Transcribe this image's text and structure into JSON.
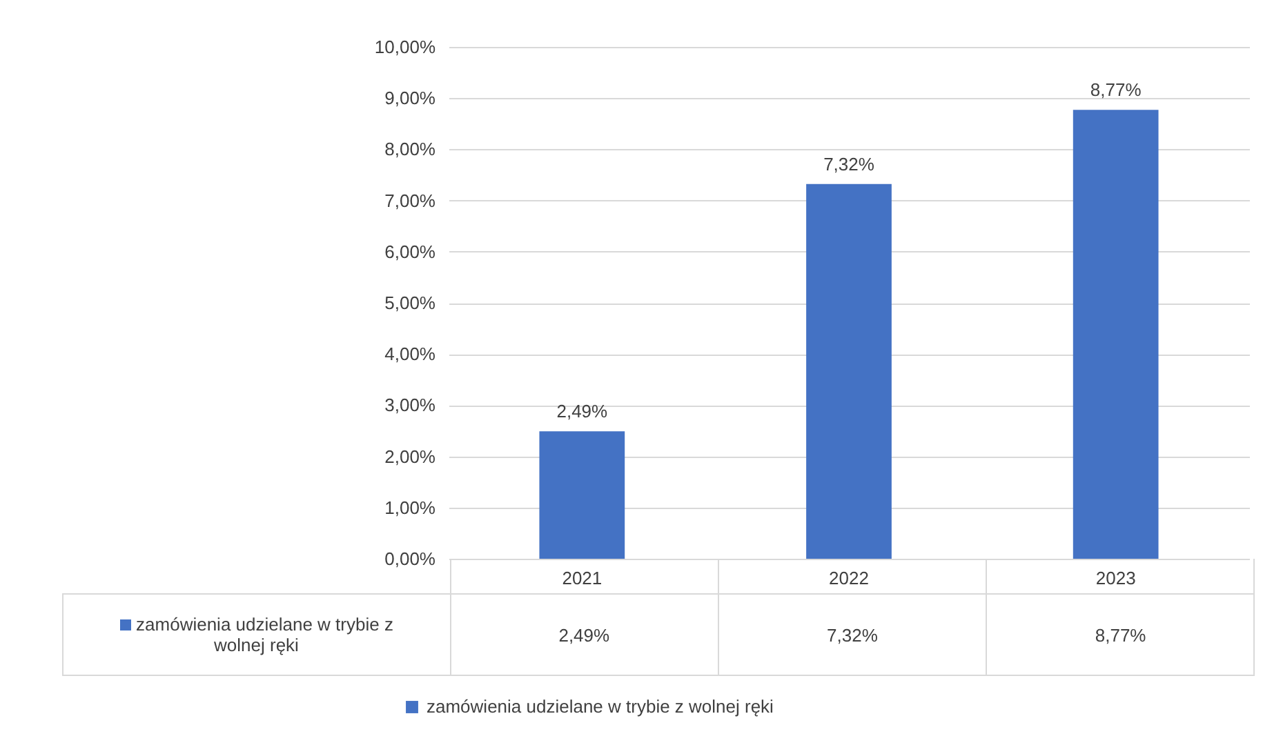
{
  "chart_data": {
    "type": "bar",
    "categories": [
      "2021",
      "2022",
      "2023"
    ],
    "series": [
      {
        "name": "zamówienia udzielane w trybie z wolnej ręki",
        "color": "#4472c4",
        "values": [
          2.49,
          7.32,
          8.77
        ],
        "value_labels": [
          "2,49%",
          "7,32%",
          "8,77%"
        ]
      }
    ],
    "ylim": [
      0,
      10
    ],
    "yticks": [
      {
        "value": 0,
        "label": "0,00%"
      },
      {
        "value": 1,
        "label": "1,00%"
      },
      {
        "value": 2,
        "label": "2,00%"
      },
      {
        "value": 3,
        "label": "3,00%"
      },
      {
        "value": 4,
        "label": "4,00%"
      },
      {
        "value": 5,
        "label": "5,00%"
      },
      {
        "value": 6,
        "label": "6,00%"
      },
      {
        "value": 7,
        "label": "7,00%"
      },
      {
        "value": 8,
        "label": "8,00%"
      },
      {
        "value": 9,
        "label": "9,00%"
      },
      {
        "value": 10,
        "label": "10,00%"
      }
    ],
    "grid": "y",
    "legend": "bottom"
  }
}
